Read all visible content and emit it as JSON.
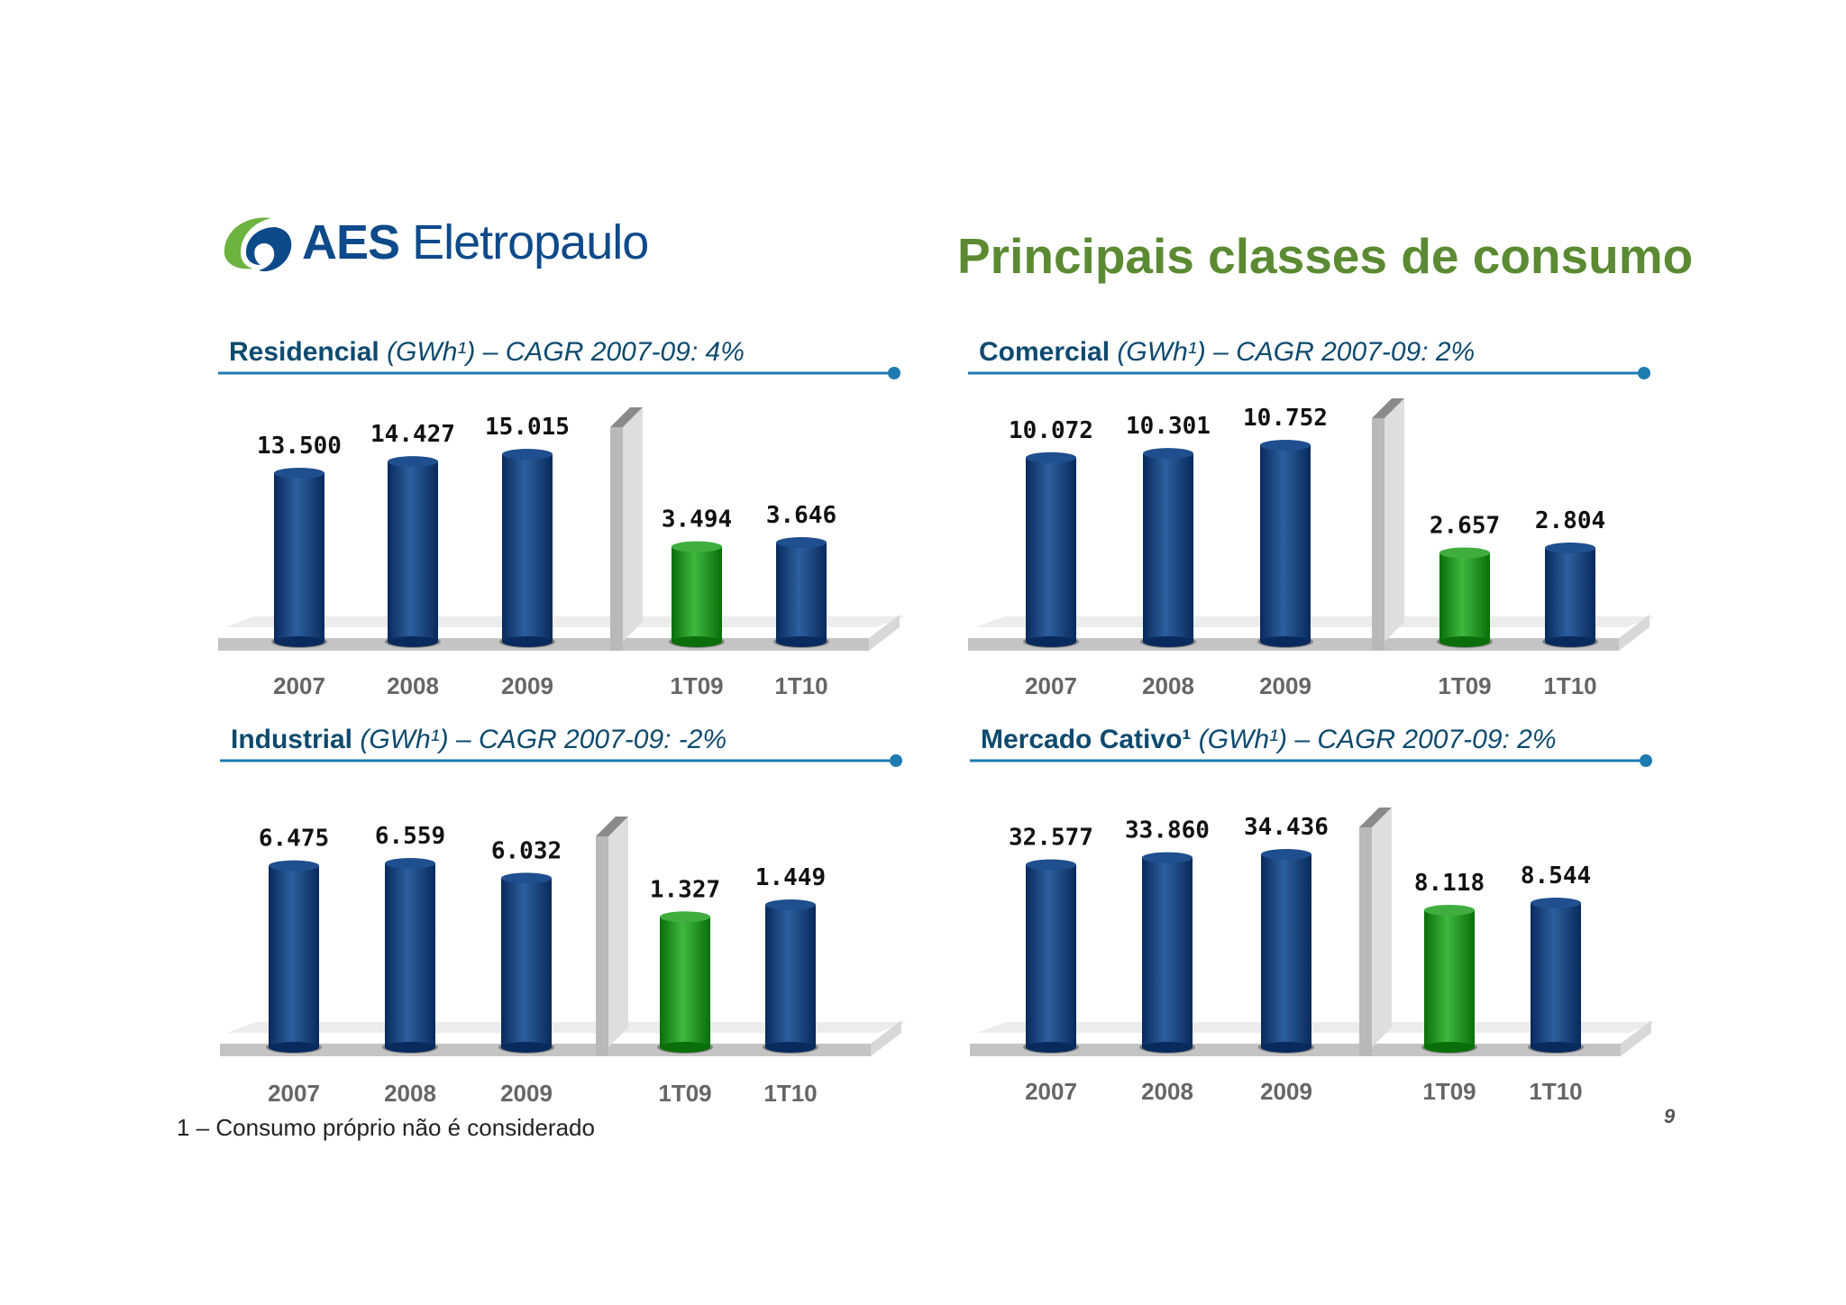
{
  "logo": {
    "brand_bold": "AES",
    "brand_light": "Eletropaulo"
  },
  "page_title": "Principais classes de consumo",
  "colors": {
    "annual_bar": "#0d3a78",
    "quarter_1T09_bar": "#1a8c1a",
    "title_green": "#5b8a32",
    "rule_blue": "#1d7bb0"
  },
  "chart_data": [
    {
      "type": "bar",
      "title_bold": "Residencial",
      "title_rest": "(GWh¹) – CAGR 2007-09: 4%",
      "categories": [
        "2007",
        "2008",
        "2009",
        "1T09",
        "1T10"
      ],
      "values": [
        13500,
        14427,
        15015,
        3494,
        3646
      ],
      "value_labels": [
        "13.500",
        "14.427",
        "15.015",
        "3.494",
        "3.646"
      ]
    },
    {
      "type": "bar",
      "title_bold": "Comercial",
      "title_rest": "(GWh¹) – CAGR 2007-09: 2%",
      "categories": [
        "2007",
        "2008",
        "2009",
        "1T09",
        "1T10"
      ],
      "values": [
        10072,
        10301,
        10752,
        2657,
        2804
      ],
      "value_labels": [
        "10.072",
        "10.301",
        "10.752",
        "2.657",
        "2.804"
      ]
    },
    {
      "type": "bar",
      "title_bold": "Industrial",
      "title_rest": "(GWh¹) – CAGR 2007-09: -2%",
      "categories": [
        "2007",
        "2008",
        "2009",
        "1T09",
        "1T10"
      ],
      "values": [
        6475,
        6559,
        6032,
        1327,
        1449
      ],
      "value_labels": [
        "6.475",
        "6.559",
        "6.032",
        "1.327",
        "1.449"
      ]
    },
    {
      "type": "bar",
      "title_bold": "Mercado Cativo¹",
      "title_rest": "(GWh¹) – CAGR 2007-09: 2%",
      "categories": [
        "2007",
        "2008",
        "2009",
        "1T09",
        "1T10"
      ],
      "values": [
        32577,
        33860,
        34436,
        8118,
        8544
      ],
      "value_labels": [
        "32.577",
        "33.860",
        "34.436",
        "8.118",
        "8.544"
      ]
    }
  ],
  "footnote": "1 – Consumo próprio não é considerado",
  "page_number": "9"
}
